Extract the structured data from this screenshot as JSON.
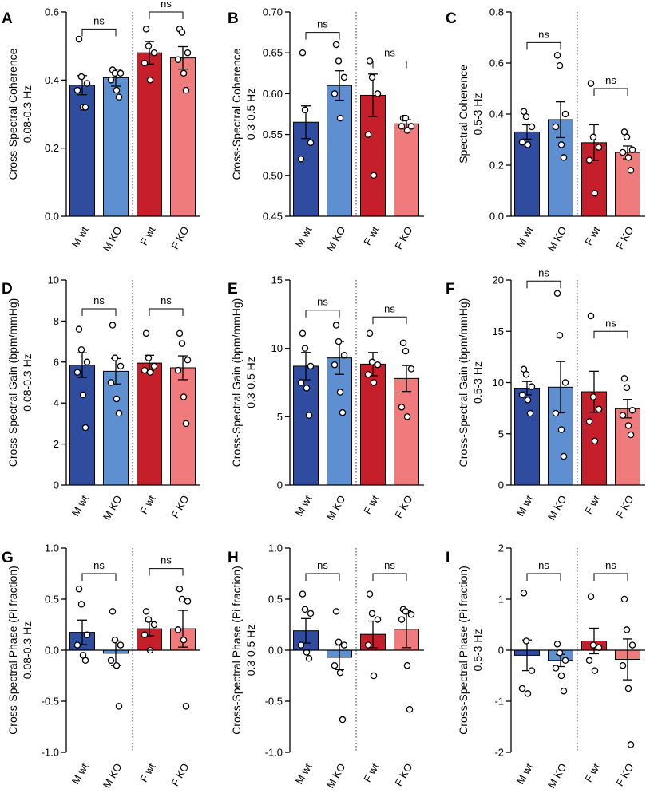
{
  "figure": {
    "categories": [
      "M wt",
      "M KO",
      "F wt",
      "F KO"
    ],
    "colors": {
      "m_wt": "#2f4c9f",
      "m_ko": "#5e8fd0",
      "f_wt": "#c41f2a",
      "f_ko": "#ef7b7c"
    }
  },
  "chart_data": [
    {
      "panel": "A",
      "type": "bar",
      "title": "",
      "xlabel": "",
      "ylabel_line1": "Cross-Spectral Coherence",
      "ylabel_line2": "0.08-0.3 Hz",
      "ylim": [
        0,
        0.6
      ],
      "yticks": [
        0,
        0.2,
        0.4,
        0.6
      ],
      "ytick_labels": [
        "0.0",
        "0.2",
        "0.4",
        "0.6"
      ],
      "categories": [
        "M wt",
        "M KO",
        "F wt",
        "F KO"
      ],
      "values": [
        0.385,
        0.407,
        0.48,
        0.465
      ],
      "errors": [
        0.028,
        0.025,
        0.033,
        0.033
      ],
      "points": [
        [
          0.52,
          0.41,
          0.39,
          0.37,
          0.32,
          0.32
        ],
        [
          0.43,
          0.42,
          0.42,
          0.4,
          0.37,
          0.35
        ],
        [
          0.55,
          0.5,
          0.48,
          0.45,
          0.4
        ],
        [
          0.55,
          0.54,
          0.48,
          0.46,
          0.42,
          0.37
        ]
      ],
      "comparisons": [
        {
          "pair": [
            0,
            1
          ],
          "label": "ns",
          "y": 0.55
        },
        {
          "pair": [
            2,
            3
          ],
          "label": "ns",
          "y": 0.6
        }
      ]
    },
    {
      "panel": "B",
      "type": "bar",
      "title": "",
      "xlabel": "",
      "ylabel_line1": "Cross-Spectral Coherence",
      "ylabel_line2": "0.3-0.5 Hz",
      "ylim": [
        0.45,
        0.7
      ],
      "yticks": [
        0.45,
        0.5,
        0.55,
        0.6,
        0.65,
        0.7
      ],
      "ytick_labels": [
        "0.45",
        "0.50",
        "0.55",
        "0.60",
        "0.65",
        "0.70"
      ],
      "categories": [
        "M wt",
        "M KO",
        "F wt",
        "F KO"
      ],
      "values": [
        0.565,
        0.61,
        0.598,
        0.563
      ],
      "errors": [
        0.02,
        0.018,
        0.026,
        0.005
      ],
      "points": [
        [
          0.65,
          0.58,
          0.54,
          0.52
        ],
        [
          0.66,
          0.64,
          0.62,
          0.6,
          0.57
        ],
        [
          0.64,
          0.62,
          0.6,
          0.55,
          0.5
        ],
        [
          0.57,
          0.57,
          0.56,
          0.56,
          0.555
        ]
      ],
      "comparisons": [
        {
          "pair": [
            0,
            1
          ],
          "label": "ns",
          "y": 0.675
        },
        {
          "pair": [
            2,
            3
          ],
          "label": "ns",
          "y": 0.64
        }
      ]
    },
    {
      "panel": "C",
      "type": "bar",
      "title": "",
      "xlabel": "",
      "ylabel_line1": "Spectral Coherence",
      "ylabel_line2": "0.5-3 Hz",
      "ylim": [
        0,
        0.8
      ],
      "yticks": [
        0,
        0.2,
        0.4,
        0.6,
        0.8
      ],
      "ytick_labels": [
        "0.0",
        "0.2",
        "0.4",
        "0.6",
        "0.8"
      ],
      "categories": [
        "M wt",
        "M KO",
        "F wt",
        "F KO"
      ],
      "values": [
        0.33,
        0.378,
        0.288,
        0.25
      ],
      "errors": [
        0.028,
        0.07,
        0.07,
        0.025
      ],
      "points": [
        [
          0.41,
          0.39,
          0.35,
          0.29,
          0.28
        ],
        [
          0.63,
          0.59,
          0.4,
          0.35,
          0.28,
          0.23
        ],
        [
          0.52,
          0.31,
          0.27,
          0.22,
          0.09
        ],
        [
          0.33,
          0.31,
          0.26,
          0.25,
          0.23,
          0.18
        ]
      ],
      "comparisons": [
        {
          "pair": [
            0,
            1
          ],
          "label": "ns",
          "y": 0.68
        },
        {
          "pair": [
            2,
            3
          ],
          "label": "ns",
          "y": 0.5
        }
      ]
    },
    {
      "panel": "D",
      "type": "bar",
      "title": "",
      "xlabel": "",
      "ylabel_line1": "Cross-Spectral Gain (bpm/mmHg)",
      "ylabel_line2": "0.08-0.3 Hz",
      "ylim": [
        0,
        10
      ],
      "yticks": [
        0,
        2,
        4,
        6,
        8,
        10
      ],
      "ytick_labels": [
        "0",
        "2",
        "4",
        "6",
        "8",
        "10"
      ],
      "categories": [
        "M wt",
        "M KO",
        "F wt",
        "F KO"
      ],
      "values": [
        5.85,
        5.55,
        5.95,
        5.72
      ],
      "errors": [
        0.6,
        0.62,
        0.38,
        0.58
      ],
      "points": [
        [
          7.6,
          6.6,
          6.0,
          5.5,
          4.4,
          2.8
        ],
        [
          7.8,
          6.2,
          5.8,
          5.0,
          4.2,
          3.5
        ],
        [
          7.4,
          6.2,
          5.8,
          5.6,
          5.5
        ],
        [
          7.4,
          6.9,
          6.1,
          5.6,
          4.3,
          3.0
        ]
      ],
      "comparisons": [
        {
          "pair": [
            0,
            1
          ],
          "label": "ns",
          "y": 8.6
        },
        {
          "pair": [
            2,
            3
          ],
          "label": "ns",
          "y": 8.6
        }
      ]
    },
    {
      "panel": "E",
      "type": "bar",
      "title": "",
      "xlabel": "",
      "ylabel_line1": "Cross-Spectral Gain (bpm/mmHg)",
      "ylabel_line2": "0.3-0.5 Hz",
      "ylim": [
        0,
        15
      ],
      "yticks": [
        0,
        5,
        10,
        15
      ],
      "ytick_labels": [
        "0",
        "5",
        "10",
        "15"
      ],
      "categories": [
        "M wt",
        "M KO",
        "F wt",
        "F KO"
      ],
      "values": [
        8.7,
        9.3,
        8.85,
        7.8
      ],
      "errors": [
        1.0,
        1.2,
        0.85,
        0.95
      ],
      "points": [
        [
          11.1,
          10.0,
          8.7,
          7.5,
          7.1,
          5.1
        ],
        [
          11.7,
          10.5,
          9.5,
          8.8,
          6.8,
          5.3
        ],
        [
          11.1,
          9.0,
          8.8,
          8.1,
          7.5
        ],
        [
          10.4,
          9.8,
          8.5,
          5.7,
          5.0
        ]
      ],
      "comparisons": [
        {
          "pair": [
            0,
            1
          ],
          "label": "ns",
          "y": 12.8
        },
        {
          "pair": [
            2,
            3
          ],
          "label": "ns",
          "y": 12.3
        }
      ]
    },
    {
      "panel": "F",
      "type": "bar",
      "title": "",
      "xlabel": "",
      "ylabel_line1": "Cross-Spectral Gain (bpm/mmHg)",
      "ylabel_line2": "0.5-3 Hz",
      "ylim": [
        0,
        20
      ],
      "yticks": [
        0,
        5,
        10,
        15,
        20
      ],
      "ytick_labels": [
        "0",
        "5",
        "10",
        "15",
        "20"
      ],
      "categories": [
        "M wt",
        "M KO",
        "F wt",
        "F KO"
      ],
      "values": [
        9.45,
        9.55,
        9.1,
        7.45
      ],
      "errors": [
        0.65,
        2.5,
        2.0,
        0.9
      ],
      "points": [
        [
          11.3,
          10.8,
          9.6,
          8.8,
          8.3,
          7.0
        ],
        [
          18.7,
          14.6,
          10.0,
          7.0,
          5.4,
          2.8
        ],
        [
          16.5,
          8.6,
          7.4,
          6.2,
          4.3
        ],
        [
          10.4,
          9.5,
          7.3,
          6.8,
          5.8,
          4.9
        ]
      ],
      "comparisons": [
        {
          "pair": [
            0,
            1
          ],
          "label": "ns",
          "y": 19.9
        },
        {
          "pair": [
            2,
            3
          ],
          "label": "ns",
          "y": 15.0
        }
      ]
    },
    {
      "panel": "G",
      "type": "bar",
      "title": "",
      "xlabel": "",
      "ylabel_line1": "Cross-Spectral Phase (Pi fraction)",
      "ylabel_line2": "0.08-0.3 Hz",
      "ylim": [
        -1,
        1
      ],
      "yticks": [
        -1,
        -0.5,
        0,
        0.5,
        1
      ],
      "ytick_labels": [
        "-1.0",
        "-0.5",
        "0.0",
        "0.5",
        "1.0"
      ],
      "categories": [
        "M wt",
        "M KO",
        "F wt",
        "F KO"
      ],
      "values": [
        0.175,
        -0.03,
        0.21,
        0.21
      ],
      "errors": [
        0.12,
        0.12,
        0.07,
        0.18
      ],
      "points": [
        [
          0.6,
          0.45,
          0.15,
          0.05,
          -0.05,
          -0.1
        ],
        [
          0.38,
          0.1,
          0.05,
          -0.1,
          -0.15,
          -0.55
        ],
        [
          0.38,
          0.3,
          0.25,
          0.15,
          0.0
        ],
        [
          0.6,
          0.5,
          0.48,
          0.2,
          0.1,
          -0.55
        ]
      ],
      "comparisons": [
        {
          "pair": [
            0,
            1
          ],
          "label": "ns",
          "y": 0.75
        },
        {
          "pair": [
            2,
            3
          ],
          "label": "ns",
          "y": 0.8
        }
      ]
    },
    {
      "panel": "H",
      "type": "bar",
      "title": "",
      "xlabel": "",
      "ylabel_line1": "Cross-Spectral Phase (Pi fraction)",
      "ylabel_line2": "0.3-0.5 Hz",
      "ylim": [
        -1,
        1
      ],
      "yticks": [
        -1,
        -0.5,
        0,
        0.5,
        1
      ],
      "ytick_labels": [
        "-1.0",
        "-0.5",
        "0.0",
        "0.5",
        "1.0"
      ],
      "categories": [
        "M wt",
        "M KO",
        "F wt",
        "F KO"
      ],
      "values": [
        0.19,
        -0.07,
        0.155,
        0.205
      ],
      "errors": [
        0.12,
        0.12,
        0.13,
        0.18
      ],
      "points": [
        [
          0.55,
          0.4,
          0.36,
          0.05,
          -0.02,
          -0.08
        ],
        [
          0.38,
          0.08,
          0.05,
          -0.15,
          -0.22,
          -0.68
        ],
        [
          0.55,
          0.36,
          0.3,
          0.05,
          -0.25
        ],
        [
          0.4,
          0.38,
          0.35,
          0.3,
          -0.15,
          -0.58
        ]
      ],
      "comparisons": [
        {
          "pair": [
            0,
            1
          ],
          "label": "ns",
          "y": 0.75
        },
        {
          "pair": [
            2,
            3
          ],
          "label": "ns",
          "y": 0.75
        }
      ]
    },
    {
      "panel": "I",
      "type": "bar",
      "title": "",
      "xlabel": "",
      "ylabel_line1": "Cross-Spectral Phase (Pi fraction)",
      "ylabel_line2": "0.5-3 Hz",
      "ylim": [
        -2,
        2
      ],
      "yticks": [
        -2,
        -1,
        0,
        1,
        2
      ],
      "ytick_labels": [
        "-2",
        "-1",
        "0",
        "1",
        "2"
      ],
      "categories": [
        "M wt",
        "M KO",
        "F wt",
        "F KO"
      ],
      "values": [
        -0.1,
        -0.2,
        0.18,
        -0.18
      ],
      "errors": [
        0.3,
        0.12,
        0.25,
        0.4
      ],
      "points": [
        [
          1.12,
          0.18,
          -0.4,
          -0.75,
          -0.85
        ],
        [
          0.12,
          -0.05,
          -0.2,
          -0.35,
          -0.5,
          -0.8
        ],
        [
          1.05,
          0.1,
          0.05,
          -0.2,
          -0.4
        ],
        [
          1.0,
          0.4,
          0.1,
          -0.3,
          -0.75,
          -1.85
        ]
      ],
      "comparisons": [
        {
          "pair": [
            0,
            1
          ],
          "label": "ns",
          "y": 1.5
        },
        {
          "pair": [
            2,
            3
          ],
          "label": "ns",
          "y": 1.5
        }
      ]
    }
  ]
}
